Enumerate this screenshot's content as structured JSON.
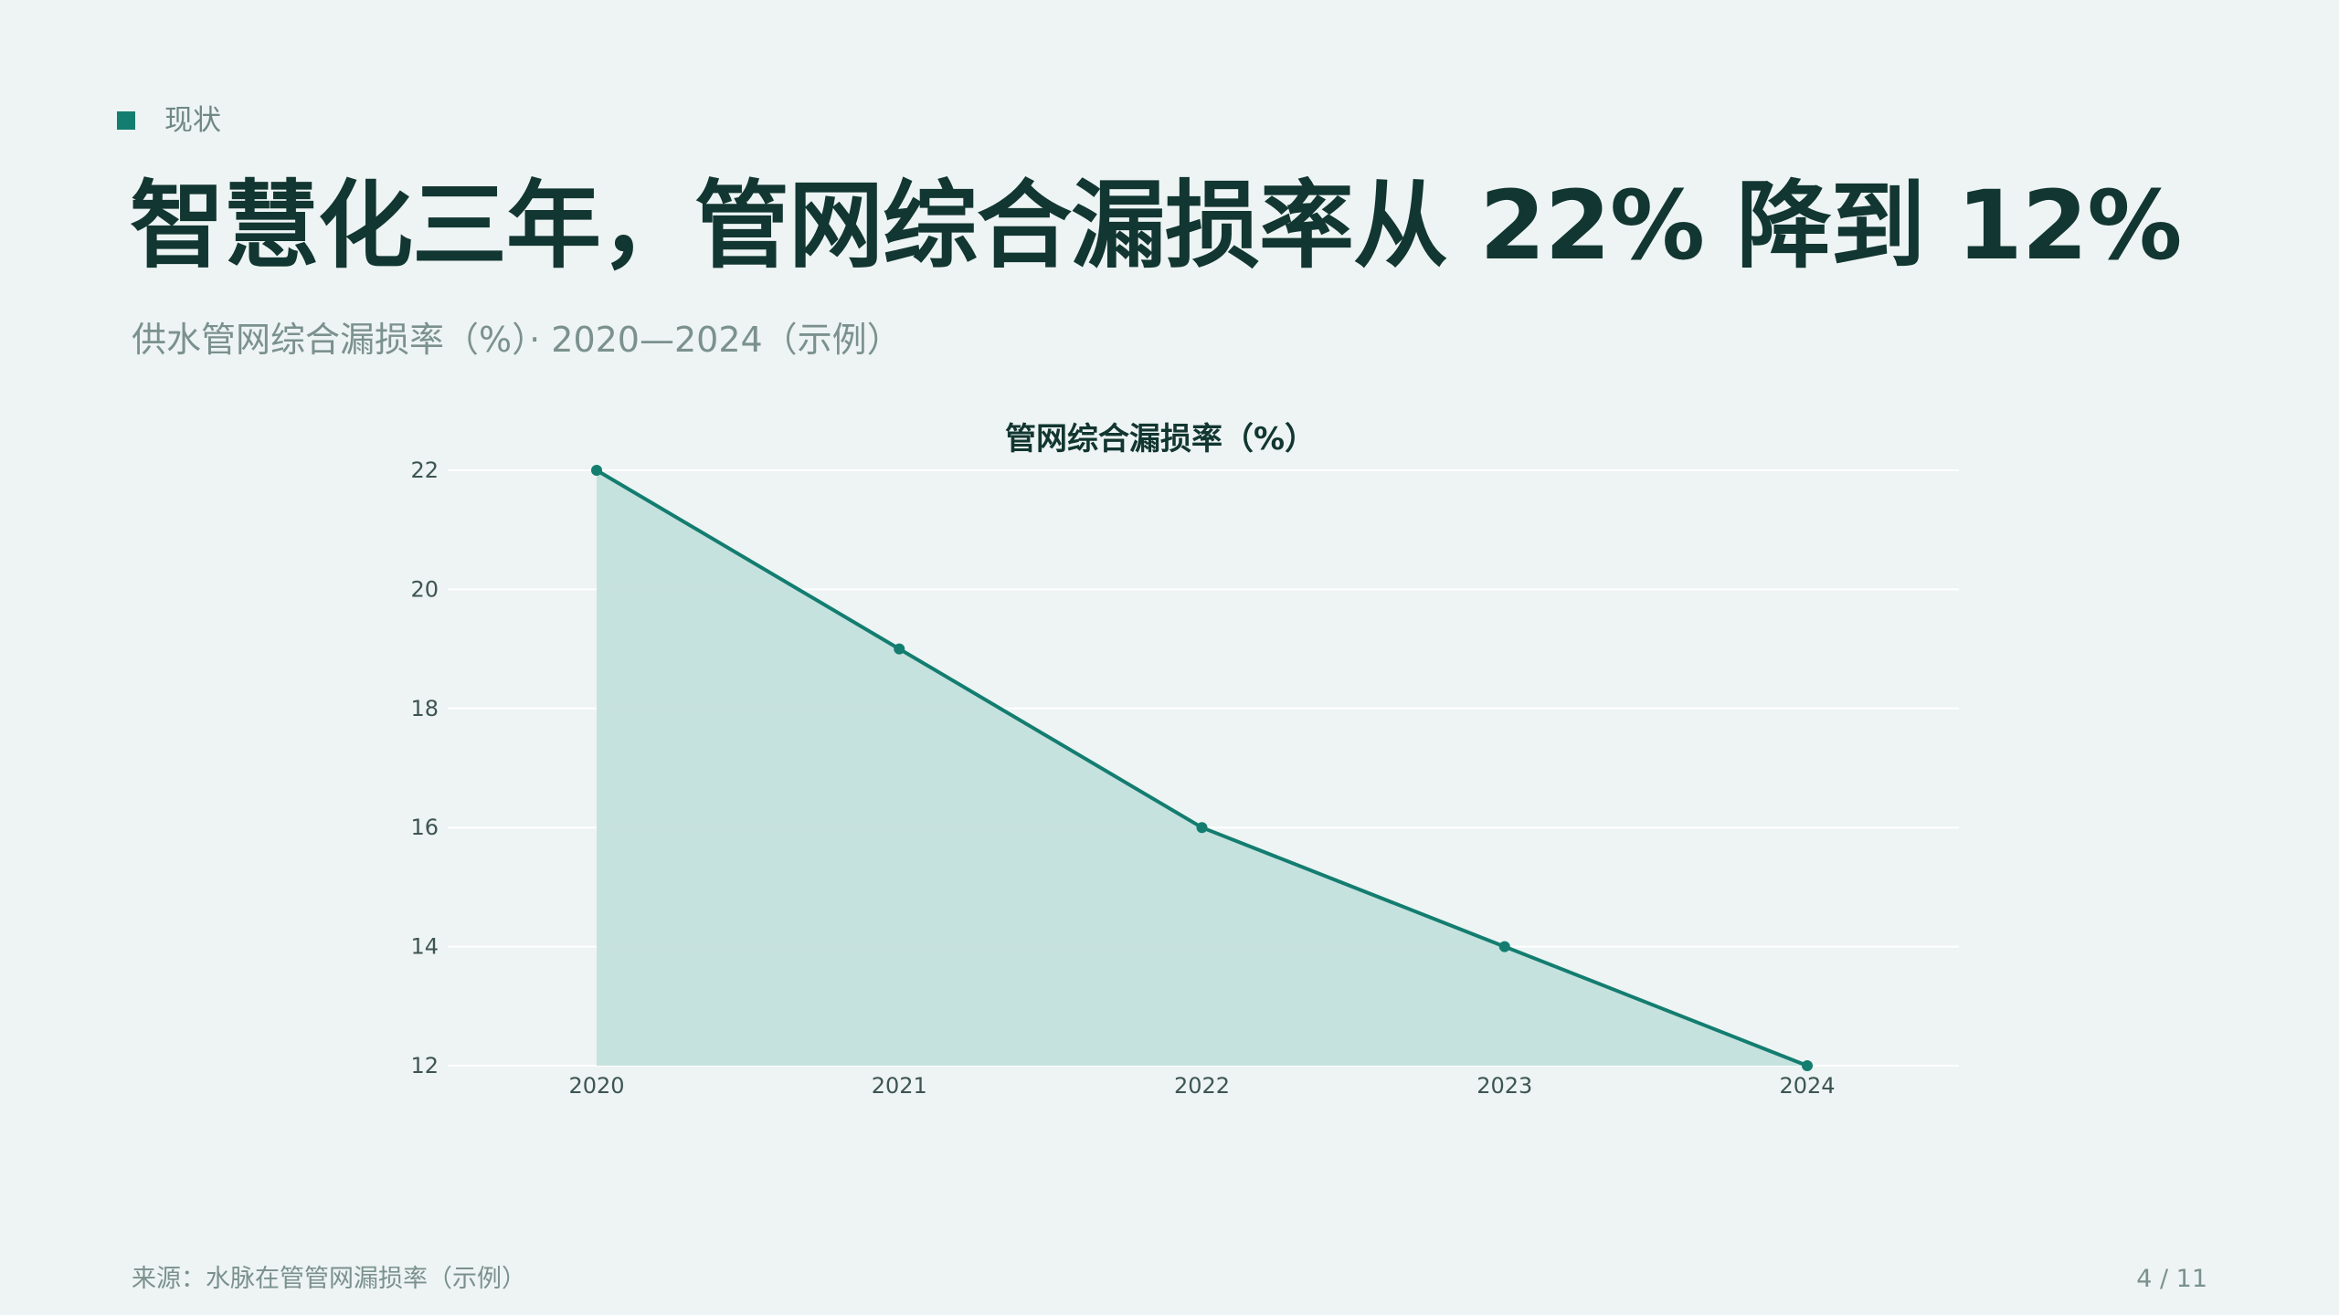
{
  "section": {
    "label": "现状"
  },
  "title": "智慧化三年，管网综合漏损率从 22% 降到 12%",
  "subtitle": "供水管网综合漏损率（%）· 2020—2024（示例）",
  "chart_data": {
    "type": "area",
    "title": "管网综合漏损率（%）",
    "categories": [
      "2020",
      "2021",
      "2022",
      "2023",
      "2024"
    ],
    "series": [
      {
        "values": [
          22,
          19,
          16,
          14,
          12
        ]
      }
    ],
    "xlabel": "",
    "ylabel": "",
    "ylim": [
      12,
      22
    ],
    "yticks": [
      "12",
      "14",
      "16",
      "18",
      "20",
      "22"
    ],
    "grid": true,
    "colors": {
      "line": "#137d70",
      "fill": "#c4e0dc",
      "grid": "#ffffff"
    }
  },
  "footer": {
    "source": "来源：水脉在管管网漏损率（示例）",
    "page": "4 / 11"
  }
}
